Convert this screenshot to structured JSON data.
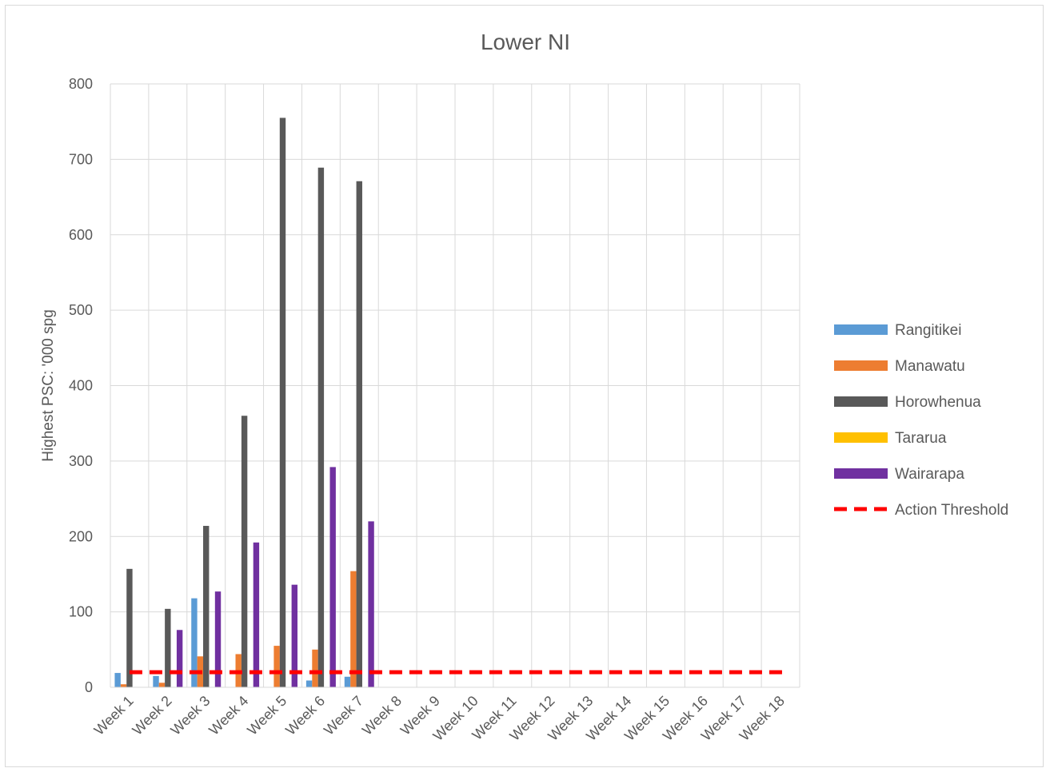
{
  "chart_data": {
    "type": "bar",
    "title": "Lower NI",
    "xlabel": "",
    "ylabel": "Highest PSC: '000 spg",
    "ylim": [
      0,
      800
    ],
    "yticks": [
      0,
      100,
      200,
      300,
      400,
      500,
      600,
      700,
      800
    ],
    "grid": true,
    "legend_position": "right",
    "categories": [
      "Week 1",
      "Week 2",
      "Week 3",
      "Week 4",
      "Week 5",
      "Week 6",
      "Week 7",
      "Week 8",
      "Week 9",
      "Week 10",
      "Week 11",
      "Week 12",
      "Week 13",
      "Week 14",
      "Week 15",
      "Week 16",
      "Week 17",
      "Week 18"
    ],
    "series": [
      {
        "name": "Rangitikei",
        "color": "#5b9bd5",
        "values": [
          19,
          15,
          118,
          null,
          null,
          9,
          14,
          null,
          null,
          null,
          null,
          null,
          null,
          null,
          null,
          null,
          null,
          null
        ]
      },
      {
        "name": "Manawatu",
        "color": "#ed7d31",
        "values": [
          4,
          6,
          41,
          44,
          55,
          50,
          154,
          null,
          null,
          null,
          null,
          null,
          null,
          null,
          null,
          null,
          null,
          null
        ]
      },
      {
        "name": "Horowhenua",
        "color": "#595959",
        "values": [
          157,
          104,
          214,
          360,
          755,
          689,
          671,
          null,
          null,
          null,
          null,
          null,
          null,
          null,
          null,
          null,
          null,
          null
        ]
      },
      {
        "name": "Tararua",
        "color": "#ffc000",
        "values": [
          null,
          null,
          null,
          null,
          null,
          null,
          null,
          null,
          null,
          null,
          null,
          null,
          null,
          null,
          null,
          null,
          null,
          null
        ]
      },
      {
        "name": "Wairarapa",
        "color": "#7030a0",
        "values": [
          null,
          76,
          127,
          192,
          136,
          292,
          220,
          null,
          null,
          null,
          null,
          null,
          null,
          null,
          null,
          null,
          null,
          null
        ]
      }
    ],
    "threshold": {
      "name": "Action Threshold",
      "color": "#ff0000",
      "value": 20,
      "style": "dashed"
    }
  }
}
